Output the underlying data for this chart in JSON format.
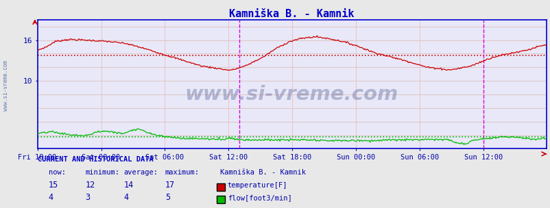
{
  "title": "Kamniška B. - Kamnik",
  "title_color": "#0000cc",
  "fig_bg_color": "#e8e8e8",
  "plot_bg_color": "#e8e8f8",
  "watermark": "www.si-vreme.com",
  "x_tick_labels": [
    "Fri 18:00",
    "Sat 00:00",
    "Sat 06:00",
    "Sat 12:00",
    "Sat 18:00",
    "Sun 00:00",
    "Sun 06:00",
    "Sun 12:00"
  ],
  "x_tick_positions": [
    0,
    72,
    144,
    216,
    288,
    360,
    432,
    504
  ],
  "total_points": 576,
  "ylim": [
    0,
    19
  ],
  "y_ticks": [
    10,
    16
  ],
  "temp_color": "#cc0000",
  "flow_color": "#00bb00",
  "grid_color_v": "#e8c8c8",
  "grid_color_h": "#e0c8c8",
  "dotted_hline_temp": 13.7,
  "dotted_hline_flow": 1.8,
  "magenta_vline": 228,
  "magenta_vline2": 504,
  "axis_color": "#0000cc",
  "tick_color": "#0000aa",
  "sidebar_text": "www.si-vreme.com",
  "legend_title": "Kamniška B. - Kamnik",
  "stat_headers": [
    "now:",
    "minimum:",
    "average:",
    "maximum:"
  ],
  "stat_temp": [
    15,
    12,
    14,
    17
  ],
  "stat_flow": [
    4,
    3,
    4,
    5
  ],
  "label_temp": "temperature[F]",
  "label_flow": "flow[foot3/min]",
  "current_data_label": "CURRENT AND HISTORICAL DATA"
}
